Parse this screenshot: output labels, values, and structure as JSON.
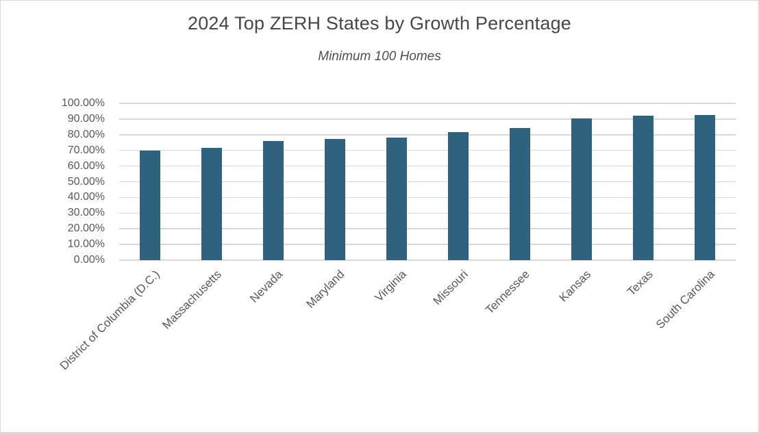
{
  "chart_data": {
    "type": "bar",
    "title": "2024 Top ZERH States by Growth Percentage",
    "subtitle": "Minimum 100 Homes",
    "categories": [
      "District of Columbia (D.C.)",
      "Massachusetts",
      "Nevada",
      "Maryland",
      "Virginia",
      "Missouri",
      "Tennessee",
      "Kansas",
      "Texas",
      "South Carolina"
    ],
    "values": [
      70.0,
      71.5,
      76.2,
      77.5,
      78.3,
      81.5,
      84.5,
      90.3,
      92.0,
      92.8
    ],
    "y_ticks": [
      "0.00%",
      "10.00%",
      "20.00%",
      "30.00%",
      "40.00%",
      "50.00%",
      "60.00%",
      "70.00%",
      "80.00%",
      "90.00%",
      "100.00%"
    ],
    "ylim": [
      0,
      100
    ],
    "xlabel": "",
    "ylabel": "",
    "grid": true,
    "legend": false,
    "bar_color": "#2F627F",
    "gridline_color": "#D9D9D9",
    "axis_label_color": "#595959",
    "title_color": "#474747"
  }
}
